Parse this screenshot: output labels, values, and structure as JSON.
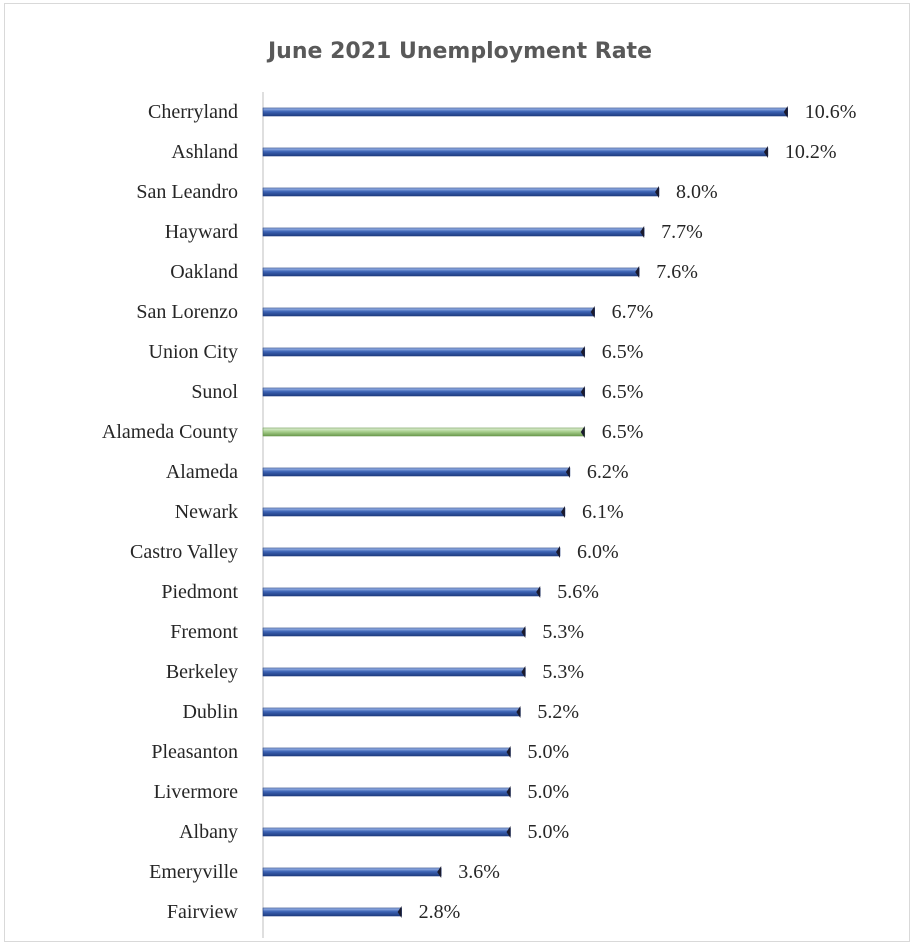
{
  "chart_data": {
    "type": "bar",
    "orientation": "horizontal",
    "title": "June 2021 Unemployment Rate",
    "xlabel": "",
    "ylabel": "",
    "grid": false,
    "legend": "none",
    "value_format": "percent_1dp",
    "xlim": [
      0,
      12
    ],
    "categories": [
      "Cherryland",
      "Ashland",
      "San Leandro",
      "Hayward",
      "Oakland",
      "San Lorenzo",
      "Union City",
      "Sunol",
      "Alameda County",
      "Alameda",
      "Newark",
      "Castro Valley",
      "Piedmont",
      "Fremont",
      "Berkeley",
      "Dublin",
      "Pleasanton",
      "Livermore",
      "Albany",
      "Emeryville",
      "Fairview"
    ],
    "values": [
      10.6,
      10.2,
      8.0,
      7.7,
      7.6,
      6.7,
      6.5,
      6.5,
      6.5,
      6.2,
      6.1,
      6.0,
      5.6,
      5.3,
      5.3,
      5.2,
      5.0,
      5.0,
      5.0,
      3.6,
      2.8
    ],
    "data_labels": [
      "10.6%",
      "10.2%",
      "8.0%",
      "7.7%",
      "7.6%",
      "6.7%",
      "6.5%",
      "6.5%",
      "6.5%",
      "6.2%",
      "6.1%",
      "6.0%",
      "5.6%",
      "5.3%",
      "5.3%",
      "5.2%",
      "5.0%",
      "5.0%",
      "5.0%",
      "3.6%",
      "2.8%"
    ],
    "highlight_category": "Alameda County",
    "colors": {
      "bar": "#3c63b5",
      "bar_light": "#a9c1ef",
      "bar_dark": "#1f3d80",
      "highlight": "#a9d08e",
      "highlight_light": "#e2f0d9",
      "highlight_dark": "#6b9a4e",
      "cap": "#1a1a2e",
      "axis": "#bfbfbf",
      "title": "#595959",
      "text": "#262626"
    }
  }
}
